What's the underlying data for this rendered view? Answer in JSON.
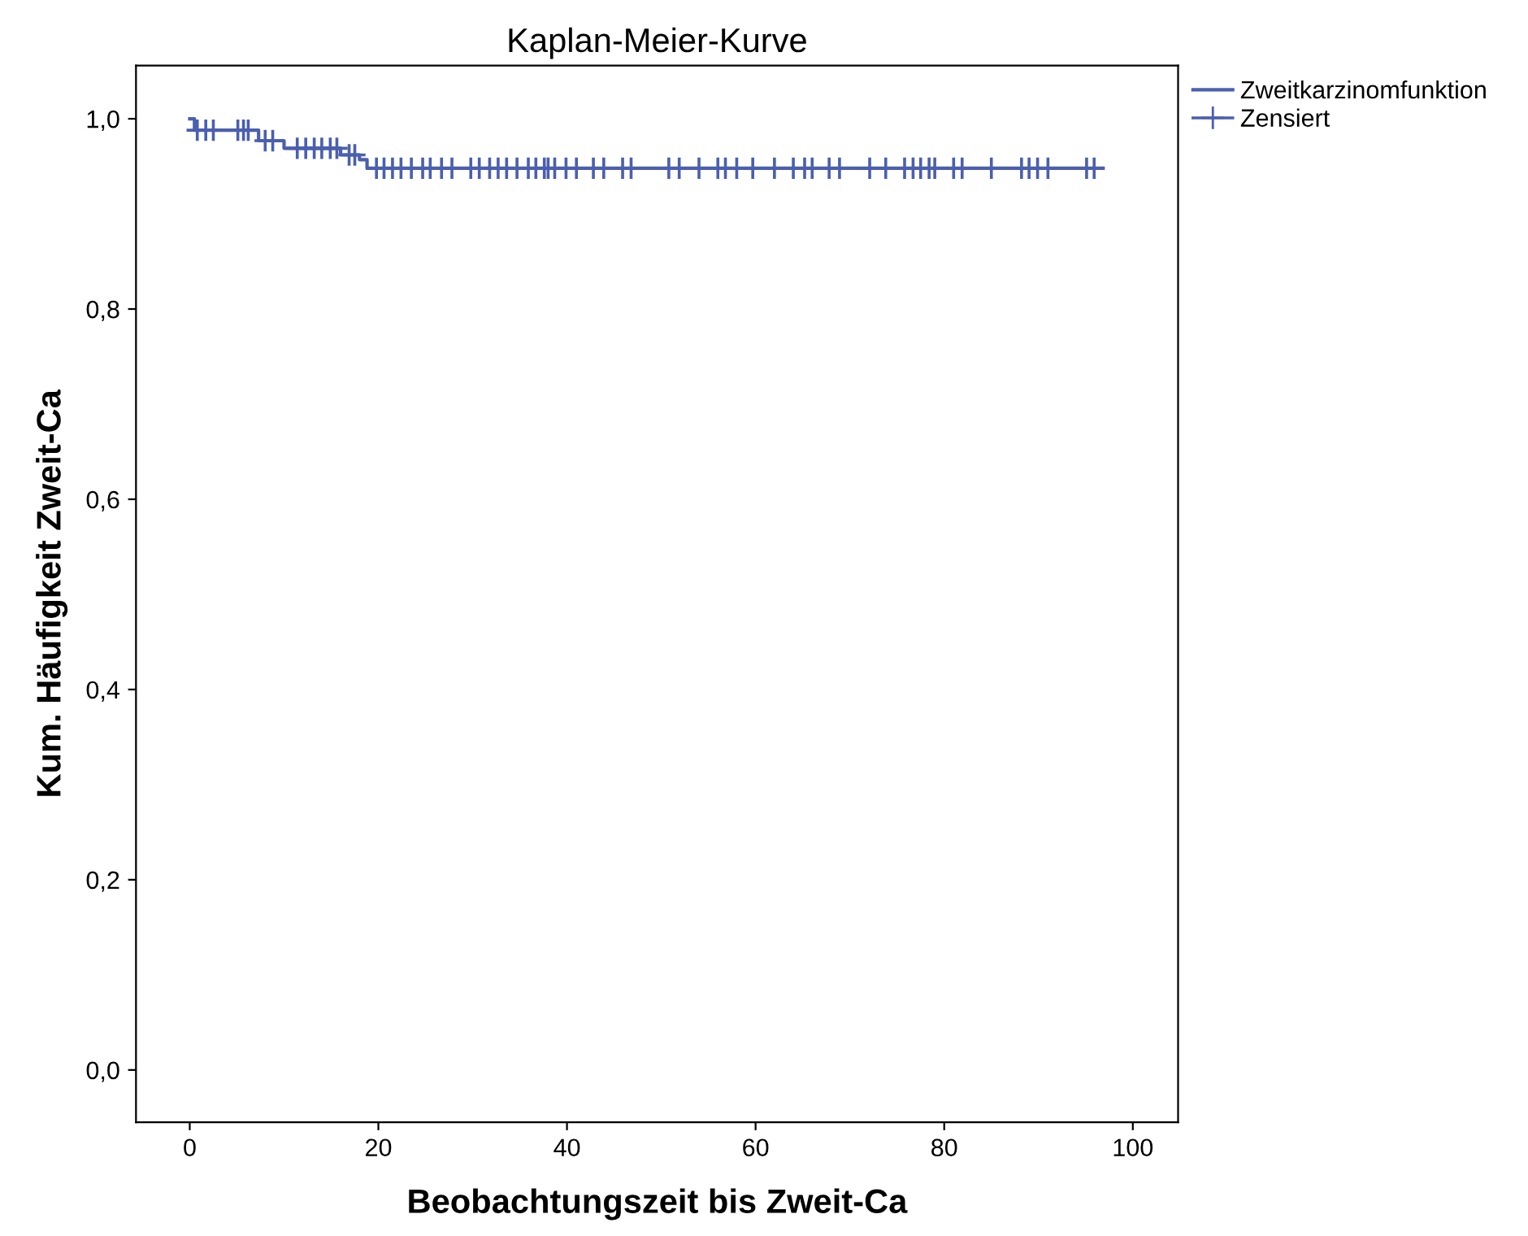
{
  "chart_data": {
    "type": "step",
    "title": "Kaplan-Meier-Kurve",
    "xlabel": "Beobachtungszeit bis Zweit-Ca",
    "ylabel": "Kum. Häufigkeit Zweit-Ca",
    "xlim": [
      -5.7,
      104.8
    ],
    "xticks": [
      0,
      20,
      40,
      60,
      80,
      100
    ],
    "ylim": [
      -0.055,
      1.056
    ],
    "yticks": [
      {
        "value": 0,
        "label": "0,0"
      },
      {
        "value": 0.2,
        "label": "0,2"
      },
      {
        "value": 0.4,
        "label": "0,4"
      },
      {
        "value": 0.6,
        "label": "0,6"
      },
      {
        "value": 0.8,
        "label": "0,8"
      },
      {
        "value": 1.0,
        "label": "1,0"
      }
    ],
    "grid": false,
    "legend": "top right",
    "series": [
      {
        "name": "Zweitkarzinomfunktion",
        "color": "#4b5fae",
        "x": [
          0,
          0.5,
          7.3,
          10,
          16,
          18,
          18.8,
          96.8
        ],
        "values": [
          1.0,
          0.988,
          0.977,
          0.969,
          0.962,
          0.957,
          0.948,
          0.948
        ]
      },
      {
        "name": "Zensiert",
        "type": "scatter",
        "marker": "cross",
        "color": "#4b5fae",
        "x": [
          0.8,
          1.7,
          2.5,
          5.1,
          5.7,
          6.2,
          8.0,
          8.8,
          11.4,
          12.3,
          13.2,
          14.0,
          14.9,
          15.6,
          16.9,
          17.5,
          19.8,
          20.6,
          21.5,
          22.4,
          23.5,
          24.7,
          25.5,
          26.7,
          27.8,
          29.8,
          30.7,
          31.8,
          32.7,
          33.6,
          34.7,
          35.9,
          36.7,
          37.6,
          38.0,
          38.7,
          39.9,
          41.0,
          42.8,
          43.9,
          45.9,
          46.8,
          50.8,
          51.9,
          54.0,
          56.0,
          56.8,
          58.0,
          59.7,
          62.0,
          64.0,
          65.2,
          66.0,
          67.8,
          68.9,
          72.1,
          73.8,
          75.8,
          76.7,
          77.5,
          78.4,
          79.0,
          81.0,
          81.9,
          85.0,
          88.2,
          89.0,
          89.9,
          91.0,
          95.1,
          95.9
        ],
        "values": [
          0.988,
          0.988,
          0.988,
          0.988,
          0.988,
          0.988,
          0.977,
          0.977,
          0.969,
          0.969,
          0.969,
          0.969,
          0.969,
          0.969,
          0.962,
          0.962,
          0.948,
          0.948,
          0.948,
          0.948,
          0.948,
          0.948,
          0.948,
          0.948,
          0.948,
          0.948,
          0.948,
          0.948,
          0.948,
          0.948,
          0.948,
          0.948,
          0.948,
          0.948,
          0.948,
          0.948,
          0.948,
          0.948,
          0.948,
          0.948,
          0.948,
          0.948,
          0.948,
          0.948,
          0.948,
          0.948,
          0.948,
          0.948,
          0.948,
          0.948,
          0.948,
          0.948,
          0.948,
          0.948,
          0.948,
          0.948,
          0.948,
          0.948,
          0.948,
          0.948,
          0.948,
          0.948,
          0.948,
          0.948,
          0.948,
          0.948,
          0.948,
          0.948,
          0.948,
          0.948,
          0.948
        ]
      }
    ]
  }
}
